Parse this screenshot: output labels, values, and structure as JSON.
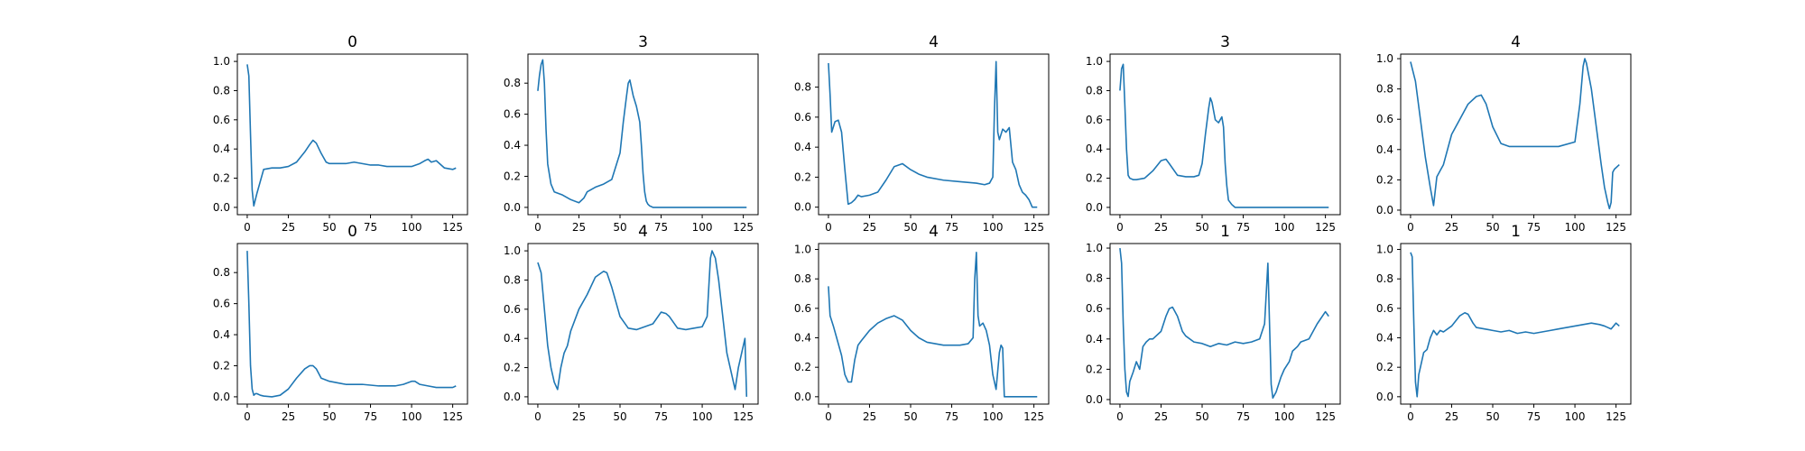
{
  "figure": {
    "background": "#ffffff",
    "line_color": "#1f77b4",
    "axis_color": "#000000"
  },
  "chart_data": [
    {
      "type": "line",
      "title": "0",
      "xlim": [
        -6,
        134
      ],
      "ylim": [
        -0.05,
        1.05
      ],
      "xticks": [
        "0",
        "25",
        "50",
        "75",
        "100",
        "125"
      ],
      "yticks": [
        "0.0",
        "0.2",
        "0.4",
        "0.6",
        "0.8",
        "1.0"
      ],
      "x": [
        0,
        1,
        2,
        3,
        4,
        6,
        10,
        15,
        20,
        25,
        30,
        35,
        38,
        40,
        42,
        45,
        48,
        50,
        55,
        60,
        65,
        70,
        75,
        80,
        85,
        90,
        95,
        100,
        105,
        108,
        110,
        112,
        115,
        118,
        120,
        125,
        127
      ],
      "y": [
        0.98,
        0.9,
        0.5,
        0.12,
        0.01,
        0.1,
        0.26,
        0.27,
        0.27,
        0.28,
        0.31,
        0.38,
        0.43,
        0.46,
        0.44,
        0.37,
        0.31,
        0.3,
        0.3,
        0.3,
        0.31,
        0.3,
        0.29,
        0.29,
        0.28,
        0.28,
        0.28,
        0.28,
        0.3,
        0.32,
        0.33,
        0.31,
        0.32,
        0.29,
        0.27,
        0.26,
        0.27
      ]
    },
    {
      "type": "line",
      "title": "3",
      "xlim": [
        -6,
        134
      ],
      "ylim": [
        -0.047,
        0.987
      ],
      "xticks": [
        "0",
        "25",
        "50",
        "75",
        "100",
        "125"
      ],
      "yticks": [
        "0.0",
        "0.2",
        "0.4",
        "0.6",
        "0.8"
      ],
      "x": [
        0,
        1,
        2,
        3,
        4,
        5,
        6,
        8,
        10,
        15,
        20,
        25,
        28,
        30,
        35,
        40,
        45,
        50,
        52,
        54,
        55,
        56,
        58,
        60,
        62,
        63,
        64,
        65,
        66,
        67,
        68,
        70,
        127
      ],
      "y": [
        0.75,
        0.85,
        0.92,
        0.95,
        0.8,
        0.5,
        0.28,
        0.15,
        0.1,
        0.08,
        0.05,
        0.03,
        0.06,
        0.1,
        0.13,
        0.15,
        0.18,
        0.35,
        0.55,
        0.72,
        0.8,
        0.82,
        0.72,
        0.65,
        0.55,
        0.4,
        0.22,
        0.1,
        0.04,
        0.02,
        0.01,
        0.0,
        0.0
      ]
    },
    {
      "type": "line",
      "title": "4",
      "xlim": [
        -6,
        134
      ],
      "ylim": [
        -0.05,
        1.02
      ],
      "xticks": [
        "0",
        "25",
        "50",
        "75",
        "100",
        "125"
      ],
      "yticks": [
        "0.0",
        "0.2",
        "0.4",
        "0.6",
        "0.8"
      ],
      "x": [
        0,
        1,
        2,
        4,
        6,
        8,
        10,
        12,
        14,
        16,
        18,
        20,
        25,
        30,
        35,
        40,
        45,
        50,
        55,
        60,
        70,
        80,
        90,
        95,
        98,
        100,
        101,
        102,
        103,
        104,
        106,
        108,
        110,
        112,
        114,
        116,
        118,
        120,
        122,
        124,
        127
      ],
      "y": [
        0.96,
        0.75,
        0.5,
        0.57,
        0.58,
        0.5,
        0.25,
        0.02,
        0.03,
        0.05,
        0.08,
        0.07,
        0.08,
        0.1,
        0.18,
        0.27,
        0.29,
        0.25,
        0.22,
        0.2,
        0.18,
        0.17,
        0.16,
        0.15,
        0.16,
        0.2,
        0.65,
        0.97,
        0.5,
        0.45,
        0.52,
        0.5,
        0.53,
        0.3,
        0.25,
        0.15,
        0.1,
        0.08,
        0.05,
        0.0,
        0.0
      ]
    },
    {
      "type": "line",
      "title": "3",
      "xlim": [
        -6,
        134
      ],
      "ylim": [
        -0.05,
        1.05
      ],
      "xticks": [
        "0",
        "25",
        "50",
        "75",
        "100",
        "125"
      ],
      "yticks": [
        "0.0",
        "0.2",
        "0.4",
        "0.6",
        "0.8",
        "1.0"
      ],
      "x": [
        0,
        1,
        2,
        3,
        4,
        5,
        6,
        8,
        10,
        15,
        20,
        25,
        28,
        30,
        35,
        40,
        45,
        48,
        50,
        52,
        54,
        55,
        56,
        58,
        60,
        62,
        63,
        64,
        65,
        66,
        68,
        70,
        127
      ],
      "y": [
        0.8,
        0.95,
        0.98,
        0.7,
        0.4,
        0.22,
        0.2,
        0.19,
        0.19,
        0.2,
        0.25,
        0.32,
        0.33,
        0.3,
        0.22,
        0.21,
        0.21,
        0.22,
        0.3,
        0.5,
        0.68,
        0.75,
        0.72,
        0.6,
        0.58,
        0.62,
        0.55,
        0.3,
        0.15,
        0.05,
        0.02,
        0.0,
        0.0
      ]
    },
    {
      "type": "line",
      "title": "4",
      "xlim": [
        -6,
        134
      ],
      "ylim": [
        -0.03,
        1.03
      ],
      "xticks": [
        "0",
        "25",
        "50",
        "75",
        "100",
        "125"
      ],
      "yticks": [
        "0.0",
        "0.2",
        "0.4",
        "0.6",
        "0.8",
        "1.0"
      ],
      "x": [
        0,
        3,
        6,
        9,
        12,
        14,
        16,
        18,
        20,
        25,
        30,
        35,
        40,
        43,
        46,
        50,
        55,
        60,
        70,
        80,
        90,
        100,
        103,
        105,
        106,
        107,
        110,
        113,
        116,
        118,
        120,
        121,
        122,
        123,
        124,
        127
      ],
      "y": [
        0.98,
        0.85,
        0.6,
        0.35,
        0.15,
        0.03,
        0.22,
        0.26,
        0.3,
        0.5,
        0.6,
        0.7,
        0.75,
        0.76,
        0.7,
        0.55,
        0.44,
        0.42,
        0.42,
        0.42,
        0.42,
        0.45,
        0.7,
        0.95,
        1.0,
        0.97,
        0.8,
        0.55,
        0.3,
        0.15,
        0.05,
        0.01,
        0.05,
        0.25,
        0.27,
        0.3
      ]
    },
    {
      "type": "line",
      "title": "0",
      "xlim": [
        -6,
        134
      ],
      "ylim": [
        -0.047,
        0.987
      ],
      "xticks": [
        "0",
        "25",
        "50",
        "75",
        "100",
        "125"
      ],
      "yticks": [
        "0.0",
        "0.2",
        "0.4",
        "0.6",
        "0.8"
      ],
      "x": [
        0,
        1,
        2,
        3,
        4,
        5,
        6,
        8,
        10,
        15,
        20,
        25,
        30,
        35,
        38,
        40,
        42,
        45,
        50,
        55,
        60,
        70,
        80,
        90,
        95,
        100,
        102,
        105,
        110,
        115,
        120,
        125,
        127
      ],
      "y": [
        0.94,
        0.6,
        0.2,
        0.05,
        0.01,
        0.02,
        0.02,
        0.01,
        0.005,
        0.0,
        0.01,
        0.05,
        0.12,
        0.18,
        0.2,
        0.2,
        0.18,
        0.12,
        0.1,
        0.09,
        0.08,
        0.08,
        0.07,
        0.07,
        0.08,
        0.1,
        0.1,
        0.08,
        0.07,
        0.06,
        0.06,
        0.06,
        0.07
      ]
    },
    {
      "type": "line",
      "title": "4",
      "xlim": [
        -6,
        134
      ],
      "ylim": [
        -0.05,
        1.05
      ],
      "xticks": [
        "0",
        "25",
        "50",
        "75",
        "100",
        "125"
      ],
      "yticks": [
        "0.0",
        "0.2",
        "0.4",
        "0.6",
        "0.8",
        "1.0"
      ],
      "x": [
        0,
        2,
        4,
        6,
        8,
        10,
        12,
        14,
        16,
        18,
        20,
        25,
        30,
        35,
        40,
        42,
        45,
        50,
        55,
        60,
        65,
        70,
        75,
        78,
        80,
        85,
        90,
        95,
        100,
        103,
        105,
        106,
        108,
        110,
        112,
        115,
        118,
        120,
        122,
        124,
        125,
        126,
        127
      ],
      "y": [
        0.92,
        0.85,
        0.6,
        0.35,
        0.2,
        0.1,
        0.05,
        0.2,
        0.3,
        0.35,
        0.45,
        0.6,
        0.7,
        0.82,
        0.86,
        0.85,
        0.75,
        0.55,
        0.47,
        0.46,
        0.48,
        0.5,
        0.58,
        0.57,
        0.55,
        0.47,
        0.46,
        0.47,
        0.48,
        0.55,
        0.95,
        1.0,
        0.95,
        0.8,
        0.6,
        0.3,
        0.15,
        0.05,
        0.2,
        0.3,
        0.35,
        0.4,
        0.0
      ]
    },
    {
      "type": "line",
      "title": "4",
      "xlim": [
        -6,
        134
      ],
      "ylim": [
        -0.05,
        1.04
      ],
      "xticks": [
        "0",
        "25",
        "50",
        "75",
        "100",
        "125"
      ],
      "yticks": [
        "0.0",
        "0.2",
        "0.4",
        "0.6",
        "0.8",
        "1.0"
      ],
      "x": [
        0,
        1,
        3,
        5,
        8,
        10,
        12,
        14,
        16,
        18,
        20,
        25,
        30,
        35,
        40,
        45,
        50,
        55,
        60,
        65,
        70,
        75,
        80,
        85,
        88,
        89,
        90,
        91,
        92,
        94,
        96,
        98,
        100,
        102,
        104,
        105,
        106,
        107,
        108,
        115,
        125,
        127
      ],
      "y": [
        0.75,
        0.55,
        0.48,
        0.4,
        0.28,
        0.15,
        0.1,
        0.1,
        0.25,
        0.35,
        0.38,
        0.45,
        0.5,
        0.53,
        0.55,
        0.52,
        0.45,
        0.4,
        0.37,
        0.36,
        0.35,
        0.35,
        0.35,
        0.36,
        0.4,
        0.8,
        0.98,
        0.55,
        0.48,
        0.5,
        0.45,
        0.35,
        0.15,
        0.05,
        0.3,
        0.35,
        0.33,
        0.0,
        0.0,
        0.0,
        0.0,
        0.0
      ]
    },
    {
      "type": "line",
      "title": "1",
      "xlim": [
        -6,
        134
      ],
      "ylim": [
        -0.03,
        1.03
      ],
      "xticks": [
        "0",
        "25",
        "50",
        "75",
        "100",
        "125"
      ],
      "yticks": [
        "0.0",
        "0.2",
        "0.4",
        "0.6",
        "0.8",
        "1.0"
      ],
      "x": [
        0,
        1,
        2,
        3,
        4,
        5,
        6,
        8,
        10,
        12,
        14,
        16,
        18,
        20,
        25,
        28,
        30,
        32,
        35,
        38,
        40,
        45,
        50,
        55,
        60,
        65,
        70,
        75,
        80,
        85,
        88,
        90,
        91,
        92,
        93,
        95,
        98,
        100,
        103,
        105,
        108,
        110,
        115,
        120,
        125,
        127
      ],
      "y": [
        1.0,
        0.9,
        0.5,
        0.2,
        0.05,
        0.02,
        0.12,
        0.18,
        0.25,
        0.2,
        0.35,
        0.38,
        0.4,
        0.4,
        0.45,
        0.55,
        0.6,
        0.61,
        0.55,
        0.45,
        0.42,
        0.38,
        0.37,
        0.35,
        0.37,
        0.36,
        0.38,
        0.37,
        0.38,
        0.4,
        0.5,
        0.9,
        0.5,
        0.1,
        0.01,
        0.05,
        0.15,
        0.2,
        0.25,
        0.32,
        0.35,
        0.38,
        0.4,
        0.5,
        0.58,
        0.55
      ]
    },
    {
      "type": "line",
      "title": "1",
      "xlim": [
        -6,
        134
      ],
      "ylim": [
        -0.05,
        1.04
      ],
      "xticks": [
        "0",
        "25",
        "50",
        "75",
        "100",
        "125"
      ],
      "yticks": [
        "0.0",
        "0.2",
        "0.4",
        "0.6",
        "0.8",
        "1.0"
      ],
      "x": [
        0,
        1,
        2,
        3,
        4,
        5,
        6,
        8,
        10,
        12,
        14,
        16,
        18,
        20,
        25,
        30,
        33,
        35,
        38,
        40,
        45,
        50,
        55,
        60,
        65,
        70,
        75,
        80,
        85,
        90,
        95,
        100,
        105,
        110,
        115,
        118,
        120,
        122,
        125,
        127
      ],
      "y": [
        0.98,
        0.95,
        0.5,
        0.1,
        0.0,
        0.15,
        0.2,
        0.3,
        0.32,
        0.4,
        0.45,
        0.42,
        0.45,
        0.44,
        0.48,
        0.55,
        0.57,
        0.56,
        0.5,
        0.47,
        0.46,
        0.45,
        0.44,
        0.45,
        0.43,
        0.44,
        0.43,
        0.44,
        0.45,
        0.46,
        0.47,
        0.48,
        0.49,
        0.5,
        0.49,
        0.48,
        0.47,
        0.46,
        0.5,
        0.48
      ]
    }
  ]
}
